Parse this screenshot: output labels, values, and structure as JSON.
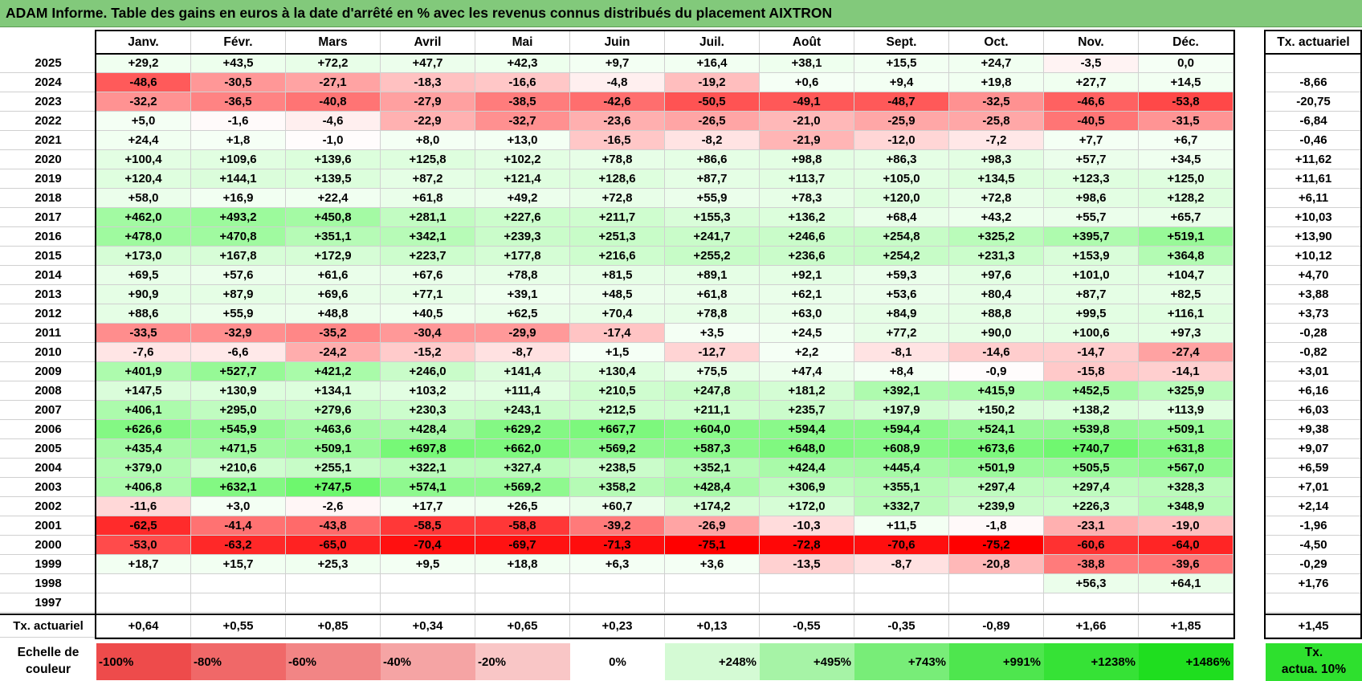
{
  "title": "ADAM Informe. Table des gains en euros à la date d'arrêté en % avec les revenus connus distribués du placement AIXTRON",
  "months": [
    "Janv.",
    "Févr.",
    "Mars",
    "Avril",
    "Mai",
    "Juin",
    "Juil.",
    "Août",
    "Sept.",
    "Oct.",
    "Nov.",
    "Déc."
  ],
  "rate_header": "Tx. actuariel",
  "rows": [
    {
      "year": "2025",
      "values": [
        "+29,2",
        "+43,5",
        "+72,2",
        "+47,7",
        "+42,3",
        "+9,7",
        "+16,4",
        "+38,1",
        "+15,5",
        "+24,7",
        "-3,5",
        "0,0"
      ],
      "rate": ""
    },
    {
      "year": "2024",
      "values": [
        "-48,6",
        "-30,5",
        "-27,1",
        "-18,3",
        "-16,6",
        "-4,8",
        "-19,2",
        "+0,6",
        "+9,4",
        "+19,8",
        "+27,7",
        "+14,5"
      ],
      "rate": "-8,66"
    },
    {
      "year": "2023",
      "values": [
        "-32,2",
        "-36,5",
        "-40,8",
        "-27,9",
        "-38,5",
        "-42,6",
        "-50,5",
        "-49,1",
        "-48,7",
        "-32,5",
        "-46,6",
        "-53,8"
      ],
      "rate": "-20,75"
    },
    {
      "year": "2022",
      "values": [
        "+5,0",
        "-1,6",
        "-4,6",
        "-22,9",
        "-32,7",
        "-23,6",
        "-26,5",
        "-21,0",
        "-25,9",
        "-25,8",
        "-40,5",
        "-31,5"
      ],
      "rate": "-6,84"
    },
    {
      "year": "2021",
      "values": [
        "+24,4",
        "+1,8",
        "-1,0",
        "+8,0",
        "+13,0",
        "-16,5",
        "-8,2",
        "-21,9",
        "-12,0",
        "-7,2",
        "+7,7",
        "+6,7"
      ],
      "rate": "-0,46"
    },
    {
      "year": "2020",
      "values": [
        "+100,4",
        "+109,6",
        "+139,6",
        "+125,8",
        "+102,2",
        "+78,8",
        "+86,6",
        "+98,8",
        "+86,3",
        "+98,3",
        "+57,7",
        "+34,5"
      ],
      "rate": "+11,62"
    },
    {
      "year": "2019",
      "values": [
        "+120,4",
        "+144,1",
        "+139,5",
        "+87,2",
        "+121,4",
        "+128,6",
        "+87,7",
        "+113,7",
        "+105,0",
        "+134,5",
        "+123,3",
        "+125,0"
      ],
      "rate": "+11,61"
    },
    {
      "year": "2018",
      "values": [
        "+58,0",
        "+16,9",
        "+22,4",
        "+61,8",
        "+49,2",
        "+72,8",
        "+55,9",
        "+78,3",
        "+120,0",
        "+72,8",
        "+98,6",
        "+128,2"
      ],
      "rate": "+6,11"
    },
    {
      "year": "2017",
      "values": [
        "+462,0",
        "+493,2",
        "+450,8",
        "+281,1",
        "+227,6",
        "+211,7",
        "+155,3",
        "+136,2",
        "+68,4",
        "+43,2",
        "+55,7",
        "+65,7"
      ],
      "rate": "+10,03"
    },
    {
      "year": "2016",
      "values": [
        "+478,0",
        "+470,8",
        "+351,1",
        "+342,1",
        "+239,3",
        "+251,3",
        "+241,7",
        "+246,6",
        "+254,8",
        "+325,2",
        "+395,7",
        "+519,1"
      ],
      "rate": "+13,90"
    },
    {
      "year": "2015",
      "values": [
        "+173,0",
        "+167,8",
        "+172,9",
        "+223,7",
        "+177,8",
        "+216,6",
        "+255,2",
        "+236,6",
        "+254,2",
        "+231,3",
        "+153,9",
        "+364,8"
      ],
      "rate": "+10,12"
    },
    {
      "year": "2014",
      "values": [
        "+69,5",
        "+57,6",
        "+61,6",
        "+67,6",
        "+78,8",
        "+81,5",
        "+89,1",
        "+92,1",
        "+59,3",
        "+97,6",
        "+101,0",
        "+104,7"
      ],
      "rate": "+4,70"
    },
    {
      "year": "2013",
      "values": [
        "+90,9",
        "+87,9",
        "+69,6",
        "+77,1",
        "+39,1",
        "+48,5",
        "+61,8",
        "+62,1",
        "+53,6",
        "+80,4",
        "+87,7",
        "+82,5"
      ],
      "rate": "+3,88"
    },
    {
      "year": "2012",
      "values": [
        "+88,6",
        "+55,9",
        "+48,8",
        "+40,5",
        "+62,5",
        "+70,4",
        "+78,8",
        "+63,0",
        "+84,9",
        "+88,8",
        "+99,5",
        "+116,1"
      ],
      "rate": "+3,73"
    },
    {
      "year": "2011",
      "values": [
        "-33,5",
        "-32,9",
        "-35,2",
        "-30,4",
        "-29,9",
        "-17,4",
        "+3,5",
        "+24,5",
        "+77,2",
        "+90,0",
        "+100,6",
        "+97,3"
      ],
      "rate": "-0,28"
    },
    {
      "year": "2010",
      "values": [
        "-7,6",
        "-6,6",
        "-24,2",
        "-15,2",
        "-8,7",
        "+1,5",
        "-12,7",
        "+2,2",
        "-8,1",
        "-14,6",
        "-14,7",
        "-27,4"
      ],
      "rate": "-0,82"
    },
    {
      "year": "2009",
      "values": [
        "+401,9",
        "+527,7",
        "+421,2",
        "+246,0",
        "+141,4",
        "+130,4",
        "+75,5",
        "+47,4",
        "+8,4",
        "-0,9",
        "-15,8",
        "-14,1"
      ],
      "rate": "+3,01"
    },
    {
      "year": "2008",
      "values": [
        "+147,5",
        "+130,9",
        "+134,1",
        "+103,2",
        "+111,4",
        "+210,5",
        "+247,8",
        "+181,2",
        "+392,1",
        "+415,9",
        "+452,5",
        "+325,9"
      ],
      "rate": "+6,16"
    },
    {
      "year": "2007",
      "values": [
        "+406,1",
        "+295,0",
        "+279,6",
        "+230,3",
        "+243,1",
        "+212,5",
        "+211,1",
        "+235,7",
        "+197,9",
        "+150,2",
        "+138,2",
        "+113,9"
      ],
      "rate": "+6,03"
    },
    {
      "year": "2006",
      "values": [
        "+626,6",
        "+545,9",
        "+463,6",
        "+428,4",
        "+629,2",
        "+667,7",
        "+604,0",
        "+594,4",
        "+594,4",
        "+524,1",
        "+539,8",
        "+509,1"
      ],
      "rate": "+9,38"
    },
    {
      "year": "2005",
      "values": [
        "+435,4",
        "+471,5",
        "+509,1",
        "+697,8",
        "+662,0",
        "+569,2",
        "+587,3",
        "+648,0",
        "+608,9",
        "+673,6",
        "+740,7",
        "+631,8"
      ],
      "rate": "+9,07"
    },
    {
      "year": "2004",
      "values": [
        "+379,0",
        "+210,6",
        "+255,1",
        "+322,1",
        "+327,4",
        "+238,5",
        "+352,1",
        "+424,4",
        "+445,4",
        "+501,9",
        "+505,5",
        "+567,0"
      ],
      "rate": "+6,59"
    },
    {
      "year": "2003",
      "values": [
        "+406,8",
        "+632,1",
        "+747,5",
        "+574,1",
        "+569,2",
        "+358,2",
        "+428,4",
        "+306,9",
        "+355,1",
        "+297,4",
        "+297,4",
        "+328,3"
      ],
      "rate": "+7,01"
    },
    {
      "year": "2002",
      "values": [
        "-11,6",
        "+3,0",
        "-2,6",
        "+17,7",
        "+26,5",
        "+60,7",
        "+174,2",
        "+172,0",
        "+332,7",
        "+239,9",
        "+226,3",
        "+348,9"
      ],
      "rate": "+2,14"
    },
    {
      "year": "2001",
      "values": [
        "-62,5",
        "-41,4",
        "-43,8",
        "-58,5",
        "-58,8",
        "-39,2",
        "-26,9",
        "-10,3",
        "+11,5",
        "-1,8",
        "-23,1",
        "-19,0"
      ],
      "rate": "-1,96"
    },
    {
      "year": "2000",
      "values": [
        "-53,0",
        "-63,2",
        "-65,0",
        "-70,4",
        "-69,7",
        "-71,3",
        "-75,1",
        "-72,8",
        "-70,6",
        "-75,2",
        "-60,6",
        "-64,0"
      ],
      "rate": "-4,50"
    },
    {
      "year": "1999",
      "values": [
        "+18,7",
        "+15,7",
        "+25,3",
        "+9,5",
        "+18,8",
        "+6,3",
        "+3,6",
        "-13,5",
        "-8,7",
        "-20,8",
        "-38,8",
        "-39,6"
      ],
      "rate": "-0,29"
    },
    {
      "year": "1998",
      "values": [
        "",
        "",
        "",
        "",
        "",
        "",
        "",
        "",
        "",
        "",
        "+56,3",
        "+64,1"
      ],
      "rate": "+1,76"
    },
    {
      "year": "1997",
      "values": [
        "",
        "",
        "",
        "",
        "",
        "",
        "",
        "",
        "",
        "",
        "",
        ""
      ],
      "rate": ""
    }
  ],
  "footer": {
    "label": "Tx. actuariel",
    "values": [
      "+0,64",
      "+0,55",
      "+0,85",
      "+0,34",
      "+0,65",
      "+0,23",
      "+0,13",
      "-0,55",
      "-0,35",
      "-0,89",
      "+1,66",
      "+1,85"
    ],
    "rate": "+1,45"
  },
  "legend": {
    "label_line1": "Echelle de",
    "label_line2": "couleur",
    "steps": [
      {
        "text": "-100%",
        "color": "#ee4b4b"
      },
      {
        "text": "-80%",
        "color": "#f06868"
      },
      {
        "text": "-60%",
        "color": "#f28585"
      },
      {
        "text": "-40%",
        "color": "#f5a4a4"
      },
      {
        "text": "-20%",
        "color": "#f9c6c6"
      },
      {
        "text": "0%",
        "color": "#ffffff"
      },
      {
        "text": "+248%",
        "color": "#d4fad4"
      },
      {
        "text": "+495%",
        "color": "#a6f3a6"
      },
      {
        "text": "+743%",
        "color": "#78ed78"
      },
      {
        "text": "+991%",
        "color": "#4ee64e"
      },
      {
        "text": "+1238%",
        "color": "#36e236"
      },
      {
        "text": "+1486%",
        "color": "#1fde1f"
      }
    ],
    "rate_line1": "Tx.",
    "rate_line2": "actua. 10%",
    "rate_color": "#2ee02e"
  }
}
